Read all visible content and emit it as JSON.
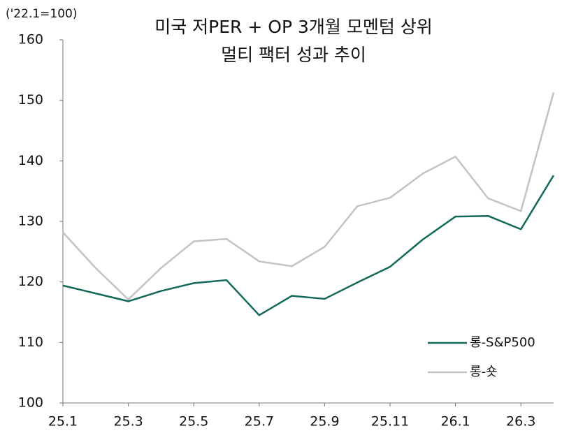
{
  "chart_data": {
    "type": "line",
    "title": [
      "미국 저PER + OP 3개월 모멘텀 상위",
      "멀티 팩터 성과 추이"
    ],
    "y_label": "('22.1=100)",
    "categories": [
      "25.1",
      null,
      "25.3",
      null,
      "25.5",
      null,
      "25.7",
      null,
      "25.9",
      null,
      "25.11",
      null,
      "26.1",
      null,
      "26.3",
      null
    ],
    "series": [
      {
        "name": "롱-S&P500",
        "color": "#12695a",
        "values": [
          119.4,
          118.1,
          116.8,
          118.5,
          119.8,
          120.3,
          114.5,
          117.7,
          117.2,
          119.9,
          122.5,
          127.0,
          130.8,
          130.9,
          128.7,
          137.6
        ]
      },
      {
        "name": "롱-숏",
        "color": "#c3c3c3",
        "values": [
          128.2,
          122.3,
          117.1,
          122.3,
          126.7,
          127.1,
          123.4,
          122.6,
          125.8,
          132.5,
          133.9,
          137.9,
          140.7,
          133.8,
          131.7,
          151.3
        ]
      }
    ],
    "ylim": [
      100,
      160
    ],
    "yticks": [
      100,
      110,
      120,
      130,
      140,
      150,
      160
    ],
    "grid": false,
    "legend": "lower right"
  }
}
